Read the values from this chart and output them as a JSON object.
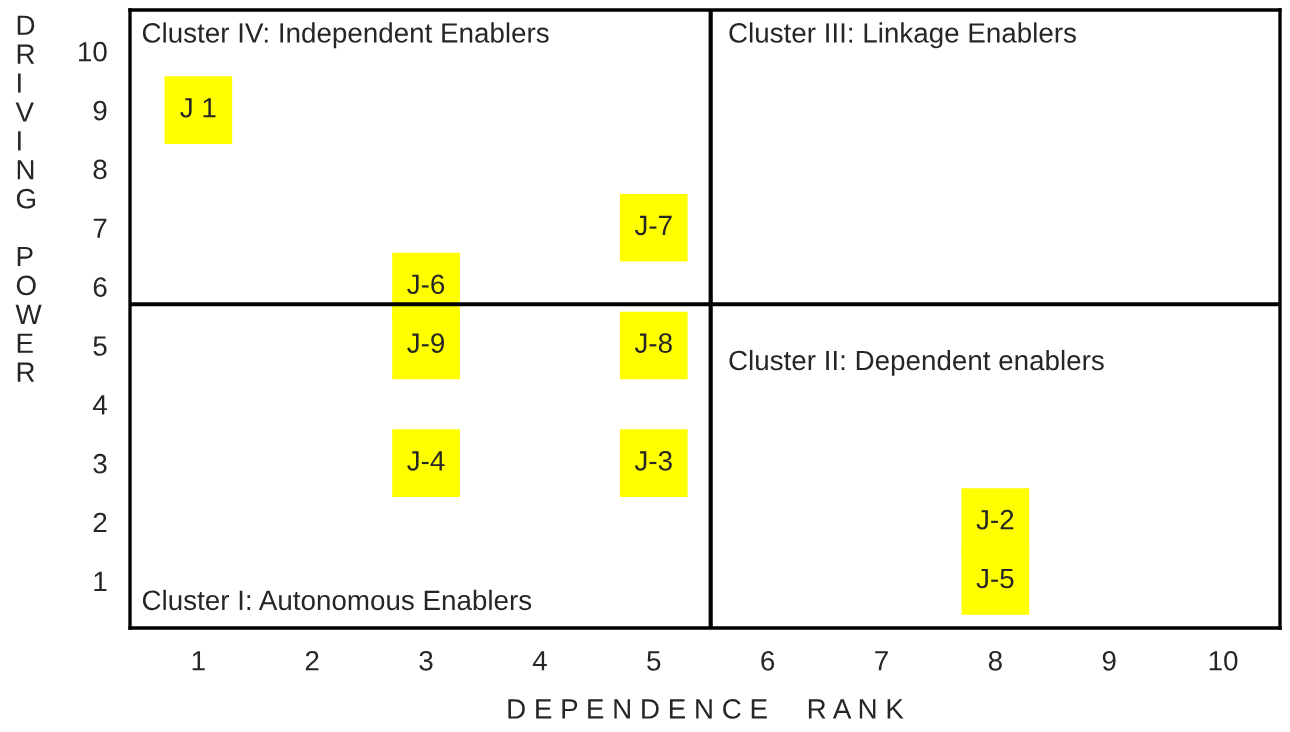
{
  "chart_data": {
    "type": "scatter",
    "xlabel": "D E P E N D E N C E     R A N K",
    "ylabel": "DRIVING    POWER",
    "x": [
      1,
      5,
      3,
      3,
      5,
      3,
      5,
      8,
      8
    ],
    "series": [
      {
        "color": "#ffff00",
        "values": [
          9,
          7,
          6,
          5,
          5,
          3,
          3,
          2,
          1
        ]
      }
    ],
    "value_labels": [
      "J 1",
      "J-7",
      "J-6",
      "J-9",
      "J-8",
      "J-4",
      "J-3",
      "J-2",
      "J-5"
    ],
    "marker": "square",
    "xlim": [
      0.4,
      10.5
    ],
    "ylim": [
      0.2,
      10.7
    ],
    "xticks": [
      1,
      2,
      3,
      4,
      5,
      6,
      7,
      8,
      9,
      10
    ],
    "yticks": [
      1,
      2,
      3,
      4,
      5,
      6,
      7,
      8,
      9,
      10
    ],
    "ref_lines": [
      {
        "axis": "x",
        "value": 5.5,
        "color": "#000000"
      },
      {
        "axis": "y",
        "value": 5.7,
        "color": "#000000"
      }
    ],
    "annotations": [
      "Cluster IV: Independent Enablers",
      "Cluster III: Linkage Enablers",
      "Cluster II: Dependent enablers",
      "Cluster I: Autonomous Enablers"
    ],
    "grid": false,
    "legend": false
  }
}
